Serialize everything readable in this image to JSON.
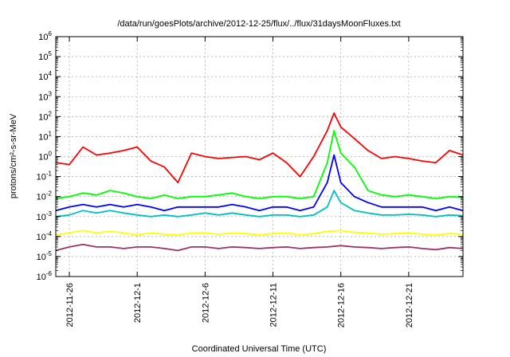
{
  "chart_data": {
    "type": "line",
    "title": "/data/run/goesPlots/archive/2012-12-25/flux/../flux/31daysMoonFluxes.txt",
    "xlabel": "Coordinated Universal Time (UTC)",
    "ylabel": "protons/cm²-s-sr-MeV",
    "y_scale": "log",
    "ylim_exponents": [
      -6,
      6
    ],
    "y_ticks": [
      {
        "base": "10",
        "exp": "-6"
      },
      {
        "base": "10",
        "exp": "-5"
      },
      {
        "base": "10",
        "exp": "-4"
      },
      {
        "base": "10",
        "exp": "-3"
      },
      {
        "base": "10",
        "exp": "-2"
      },
      {
        "base": "10",
        "exp": "-1"
      },
      {
        "base": "10",
        "exp": "0"
      },
      {
        "base": "10",
        "exp": "1"
      },
      {
        "base": "10",
        "exp": "2"
      },
      {
        "base": "10",
        "exp": "3"
      },
      {
        "base": "10",
        "exp": "4"
      },
      {
        "base": "10",
        "exp": "5"
      },
      {
        "base": "10",
        "exp": "6"
      }
    ],
    "x_range": [
      "2012-11-25",
      "2012-12-25"
    ],
    "x_ticks": [
      "2012-11-26",
      "2012-12-1",
      "2012-12-6",
      "2012-12-11",
      "2012-12-16",
      "2012-12-21"
    ],
    "grid": true,
    "legend": "none",
    "series": [
      {
        "color": "#ff0000",
        "points": [
          [
            "2012-11-25",
            0.5
          ],
          [
            "2012-11-26",
            0.4
          ],
          [
            "2012-11-27",
            3
          ],
          [
            "2012-11-28",
            1.2
          ],
          [
            "2012-11-29",
            1.5
          ],
          [
            "2012-11-30",
            2
          ],
          [
            "2012-12-01",
            3
          ],
          [
            "2012-12-02",
            0.6
          ],
          [
            "2012-12-03",
            0.3
          ],
          [
            "2012-12-04",
            0.05
          ],
          [
            "2012-12-05",
            1.5
          ],
          [
            "2012-12-06",
            1
          ],
          [
            "2012-12-07",
            0.8
          ],
          [
            "2012-12-08",
            0.9
          ],
          [
            "2012-12-09",
            1
          ],
          [
            "2012-12-10",
            0.7
          ],
          [
            "2012-12-11",
            1.5
          ],
          [
            "2012-12-12",
            0.5
          ],
          [
            "2012-12-13",
            0.1
          ],
          [
            "2012-12-14",
            1
          ],
          [
            "2012-12-15",
            20
          ],
          [
            "2012-12-15T12:00",
            150
          ],
          [
            "2012-12-16",
            30
          ],
          [
            "2012-12-17",
            8
          ],
          [
            "2012-12-18",
            2
          ],
          [
            "2012-12-19",
            0.8
          ],
          [
            "2012-12-20",
            1
          ],
          [
            "2012-12-21",
            0.8
          ],
          [
            "2012-12-22",
            0.6
          ],
          [
            "2012-12-23",
            0.5
          ],
          [
            "2012-12-24",
            2
          ],
          [
            "2012-12-25",
            1.2
          ]
        ]
      },
      {
        "color": "#00ff00",
        "points": [
          [
            "2012-11-25",
            0.008
          ],
          [
            "2012-11-26",
            0.01
          ],
          [
            "2012-11-27",
            0.015
          ],
          [
            "2012-11-28",
            0.012
          ],
          [
            "2012-11-29",
            0.02
          ],
          [
            "2012-11-30",
            0.015
          ],
          [
            "2012-12-01",
            0.01
          ],
          [
            "2012-12-02",
            0.008
          ],
          [
            "2012-12-03",
            0.012
          ],
          [
            "2012-12-04",
            0.008
          ],
          [
            "2012-12-05",
            0.01
          ],
          [
            "2012-12-06",
            0.01
          ],
          [
            "2012-12-07",
            0.012
          ],
          [
            "2012-12-08",
            0.015
          ],
          [
            "2012-12-09",
            0.01
          ],
          [
            "2012-12-10",
            0.008
          ],
          [
            "2012-12-11",
            0.01
          ],
          [
            "2012-12-12",
            0.01
          ],
          [
            "2012-12-13",
            0.008
          ],
          [
            "2012-12-14",
            0.01
          ],
          [
            "2012-12-15",
            0.5
          ],
          [
            "2012-12-15T12:00",
            20
          ],
          [
            "2012-12-16",
            1.5
          ],
          [
            "2012-12-17",
            0.3
          ],
          [
            "2012-12-18",
            0.02
          ],
          [
            "2012-12-19",
            0.012
          ],
          [
            "2012-12-20",
            0.01
          ],
          [
            "2012-12-21",
            0.012
          ],
          [
            "2012-12-22",
            0.01
          ],
          [
            "2012-12-23",
            0.008
          ],
          [
            "2012-12-24",
            0.01
          ],
          [
            "2012-12-25",
            0.009
          ]
        ]
      },
      {
        "color": "#0000ff",
        "points": [
          [
            "2012-11-25",
            0.002
          ],
          [
            "2012-11-26",
            0.003
          ],
          [
            "2012-11-27",
            0.004
          ],
          [
            "2012-11-28",
            0.003
          ],
          [
            "2012-11-29",
            0.004
          ],
          [
            "2012-11-30",
            0.003
          ],
          [
            "2012-12-01",
            0.004
          ],
          [
            "2012-12-02",
            0.003
          ],
          [
            "2012-12-03",
            0.002
          ],
          [
            "2012-12-04",
            0.003
          ],
          [
            "2012-12-05",
            0.003
          ],
          [
            "2012-12-06",
            0.003
          ],
          [
            "2012-12-07",
            0.003
          ],
          [
            "2012-12-08",
            0.004
          ],
          [
            "2012-12-09",
            0.003
          ],
          [
            "2012-12-10",
            0.002
          ],
          [
            "2012-12-11",
            0.003
          ],
          [
            "2012-12-12",
            0.003
          ],
          [
            "2012-12-13",
            0.002
          ],
          [
            "2012-12-14",
            0.003
          ],
          [
            "2012-12-15",
            0.05
          ],
          [
            "2012-12-15T12:00",
            1.2
          ],
          [
            "2012-12-16",
            0.05
          ],
          [
            "2012-12-17",
            0.01
          ],
          [
            "2012-12-18",
            0.005
          ],
          [
            "2012-12-19",
            0.003
          ],
          [
            "2012-12-20",
            0.003
          ],
          [
            "2012-12-21",
            0.003
          ],
          [
            "2012-12-22",
            0.003
          ],
          [
            "2012-12-23",
            0.002
          ],
          [
            "2012-12-24",
            0.003
          ],
          [
            "2012-12-25",
            0.002
          ]
        ]
      },
      {
        "color": "#00c0c0",
        "points": [
          [
            "2012-11-25",
            0.001
          ],
          [
            "2012-11-26",
            0.0012
          ],
          [
            "2012-11-27",
            0.002
          ],
          [
            "2012-11-28",
            0.0015
          ],
          [
            "2012-11-29",
            0.002
          ],
          [
            "2012-11-30",
            0.0015
          ],
          [
            "2012-12-01",
            0.0012
          ],
          [
            "2012-12-02",
            0.001
          ],
          [
            "2012-12-03",
            0.0012
          ],
          [
            "2012-12-04",
            0.001
          ],
          [
            "2012-12-05",
            0.0012
          ],
          [
            "2012-12-06",
            0.0015
          ],
          [
            "2012-12-07",
            0.0012
          ],
          [
            "2012-12-08",
            0.0015
          ],
          [
            "2012-12-09",
            0.0012
          ],
          [
            "2012-12-10",
            0.001
          ],
          [
            "2012-12-11",
            0.0012
          ],
          [
            "2012-12-12",
            0.0012
          ],
          [
            "2012-12-13",
            0.001
          ],
          [
            "2012-12-14",
            0.0012
          ],
          [
            "2012-12-15",
            0.003
          ],
          [
            "2012-12-15T12:00",
            0.02
          ],
          [
            "2012-12-16",
            0.005
          ],
          [
            "2012-12-17",
            0.002
          ],
          [
            "2012-12-18",
            0.0015
          ],
          [
            "2012-12-19",
            0.0012
          ],
          [
            "2012-12-20",
            0.0012
          ],
          [
            "2012-12-21",
            0.0013
          ],
          [
            "2012-12-22",
            0.0012
          ],
          [
            "2012-12-23",
            0.001
          ],
          [
            "2012-12-24",
            0.0012
          ],
          [
            "2012-12-25",
            0.0011
          ]
        ]
      },
      {
        "color": "#ffff00",
        "points": [
          [
            "2012-11-25",
            0.00012
          ],
          [
            "2012-11-26",
            0.00015
          ],
          [
            "2012-11-27",
            0.0002
          ],
          [
            "2012-11-28",
            0.00015
          ],
          [
            "2012-11-29",
            0.00018
          ],
          [
            "2012-11-30",
            0.00015
          ],
          [
            "2012-12-01",
            0.00012
          ],
          [
            "2012-12-02",
            0.00015
          ],
          [
            "2012-12-03",
            0.00013
          ],
          [
            "2012-12-04",
            0.00012
          ],
          [
            "2012-12-05",
            0.00015
          ],
          [
            "2012-12-06",
            0.00015
          ],
          [
            "2012-12-07",
            0.00013
          ],
          [
            "2012-12-08",
            0.00015
          ],
          [
            "2012-12-09",
            0.00014
          ],
          [
            "2012-12-10",
            0.00012
          ],
          [
            "2012-12-11",
            0.00014
          ],
          [
            "2012-12-12",
            0.00015
          ],
          [
            "2012-12-13",
            0.00012
          ],
          [
            "2012-12-14",
            0.00014
          ],
          [
            "2012-12-15",
            0.00018
          ],
          [
            "2012-12-16",
            0.0002
          ],
          [
            "2012-12-17",
            0.00016
          ],
          [
            "2012-12-18",
            0.00015
          ],
          [
            "2012-12-19",
            0.00013
          ],
          [
            "2012-12-20",
            0.00014
          ],
          [
            "2012-12-21",
            0.00015
          ],
          [
            "2012-12-22",
            0.00013
          ],
          [
            "2012-12-23",
            0.00012
          ],
          [
            "2012-12-24",
            0.00014
          ],
          [
            "2012-12-25",
            0.00013
          ]
        ]
      },
      {
        "color": "#993366",
        "points": [
          [
            "2012-11-25",
            2e-05
          ],
          [
            "2012-11-26",
            3e-05
          ],
          [
            "2012-11-27",
            4e-05
          ],
          [
            "2012-11-28",
            3e-05
          ],
          [
            "2012-11-29",
            3e-05
          ],
          [
            "2012-11-30",
            2.5e-05
          ],
          [
            "2012-12-01",
            3e-05
          ],
          [
            "2012-12-02",
            3e-05
          ],
          [
            "2012-12-03",
            2.5e-05
          ],
          [
            "2012-12-04",
            2e-05
          ],
          [
            "2012-12-05",
            3e-05
          ],
          [
            "2012-12-06",
            3e-05
          ],
          [
            "2012-12-07",
            2.5e-05
          ],
          [
            "2012-12-08",
            3e-05
          ],
          [
            "2012-12-09",
            2.8e-05
          ],
          [
            "2012-12-10",
            2.5e-05
          ],
          [
            "2012-12-11",
            2.8e-05
          ],
          [
            "2012-12-12",
            3e-05
          ],
          [
            "2012-12-13",
            2.5e-05
          ],
          [
            "2012-12-14",
            2.8e-05
          ],
          [
            "2012-12-15",
            3e-05
          ],
          [
            "2012-12-16",
            3.5e-05
          ],
          [
            "2012-12-17",
            3e-05
          ],
          [
            "2012-12-18",
            2.8e-05
          ],
          [
            "2012-12-19",
            2.5e-05
          ],
          [
            "2012-12-20",
            2.8e-05
          ],
          [
            "2012-12-21",
            3e-05
          ],
          [
            "2012-12-22",
            2.5e-05
          ],
          [
            "2012-12-23",
            2.2e-05
          ],
          [
            "2012-12-24",
            2.8e-05
          ],
          [
            "2012-12-25",
            2.5e-05
          ]
        ]
      }
    ]
  }
}
